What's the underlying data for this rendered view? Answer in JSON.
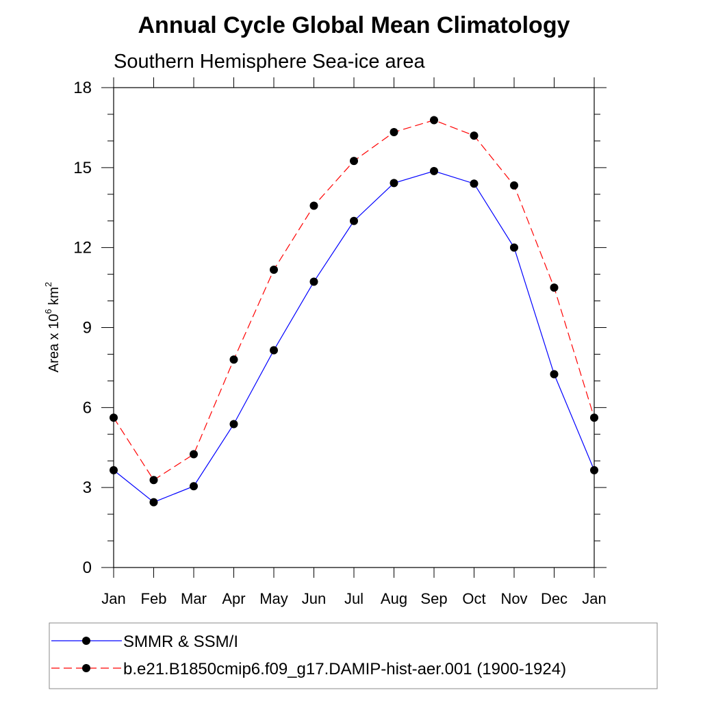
{
  "chart_data": {
    "type": "line",
    "title": "Annual Cycle Global Mean Climatology",
    "subtitle": "Southern Hemisphere Sea-ice area",
    "ylabel": {
      "text": "Area x 10",
      "sup1": "6",
      "mid": " km",
      "sup2": "2"
    },
    "xlabel": "",
    "categories": [
      "Jan",
      "Feb",
      "Mar",
      "Apr",
      "May",
      "Jun",
      "Jul",
      "Aug",
      "Sep",
      "Oct",
      "Nov",
      "Dec",
      "Jan"
    ],
    "ylim": [
      0,
      18
    ],
    "yticks": [
      0,
      3,
      6,
      9,
      12,
      15,
      18
    ],
    "grid": false,
    "legend_placement": "bottom",
    "series": [
      {
        "name": "SMMR & SSM/I",
        "color": "#0000ff",
        "dash": "solid",
        "marker": "circle",
        "values": [
          3.65,
          2.45,
          3.05,
          5.38,
          8.15,
          10.72,
          13.0,
          14.42,
          14.87,
          14.4,
          12.0,
          7.25,
          3.65
        ]
      },
      {
        "name": "b.e21.B1850cmip6.f09_g17.DAMIP-hist-aer.001 (1900-1924)",
        "color": "#ff0000",
        "dash": "dashed",
        "marker": "circle",
        "values": [
          5.62,
          3.28,
          4.25,
          7.8,
          11.17,
          13.57,
          15.25,
          16.33,
          16.78,
          16.2,
          14.33,
          10.5,
          5.62
        ]
      }
    ]
  }
}
